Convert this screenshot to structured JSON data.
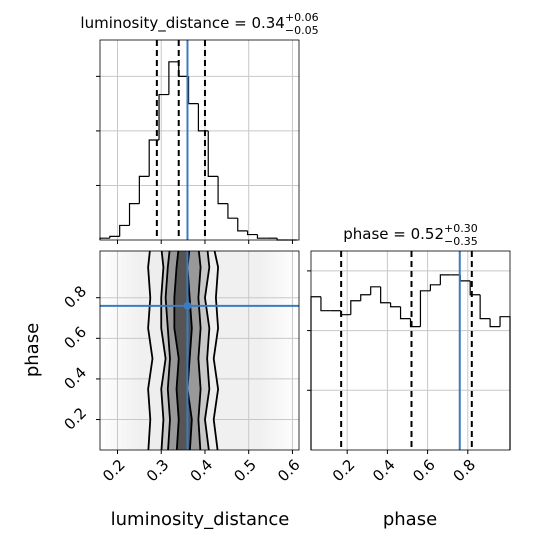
{
  "chart_data": {
    "type": "corner",
    "params": [
      "luminosity_distance",
      "phase"
    ],
    "titles": [
      {
        "main": "luminosity_distance = 0.34",
        "upper": "+0.06",
        "lower": "−0.05"
      },
      {
        "main": "phase = 0.52",
        "upper": "+0.30",
        "lower": "−0.35"
      }
    ],
    "xlim": [
      0.16,
      0.615
    ],
    "xticks": [
      0.2,
      0.3,
      0.4,
      0.5,
      0.6
    ],
    "phase_lim": [
      0.02,
      1.01
    ],
    "phase_ticks": [
      0.2,
      0.4,
      0.6,
      0.8
    ],
    "hist_ylim": [
      [
        0,
        1.1
      ],
      [
        0,
        1
      ]
    ],
    "hist_yticks": [
      [
        0.3,
        0.6,
        0.9
      ],
      [
        0.3,
        0.6,
        0.9
      ]
    ],
    "truth": [
      0.36,
      0.76
    ],
    "truth_color": "#3b7bbf",
    "quantiles": [
      [
        0.29,
        0.34,
        0.4
      ],
      [
        0.17,
        0.52,
        0.82
      ]
    ],
    "hists": [
      {
        "bins": [
          0.16,
          0.1825,
          0.205,
          0.2275,
          0.25,
          0.2725,
          0.295,
          0.3175,
          0.34,
          0.3625,
          0.385,
          0.4075,
          0.43,
          0.4525,
          0.475,
          0.4975,
          0.52,
          0.5425,
          0.565,
          0.5875,
          0.61
        ],
        "counts": [
          0.01,
          0.02,
          0.08,
          0.2,
          0.35,
          0.55,
          0.8,
          0.98,
          0.9,
          0.75,
          0.6,
          0.35,
          0.2,
          0.12,
          0.05,
          0.03,
          0.01,
          0.01,
          0,
          0
        ]
      },
      {
        "bins": [
          0.02,
          0.0695,
          0.119,
          0.1685,
          0.218,
          0.2675,
          0.317,
          0.3665,
          0.416,
          0.4655,
          0.515,
          0.5645,
          0.614,
          0.6635,
          0.713,
          0.7625,
          0.812,
          0.8615,
          0.911,
          0.9605,
          1.01
        ],
        "counts": [
          0.77,
          0.7,
          0.7,
          0.68,
          0.75,
          0.78,
          0.82,
          0.74,
          0.72,
          0.66,
          0.62,
          0.8,
          0.83,
          0.88,
          0.88,
          0.85,
          0.78,
          0.66,
          0.62,
          0.67
        ]
      }
    ],
    "contour_phase": [
      0.03,
      0.2,
      0.35,
      0.5,
      0.65,
      0.8,
      0.95,
      1.05
    ],
    "contours": [
      {
        "color": "#eeeeee",
        "left": [
          0.27,
          0.275,
          0.27,
          0.28,
          0.27,
          0.275,
          0.27,
          0.275
        ],
        "right": [
          0.43,
          0.42,
          0.43,
          0.42,
          0.43,
          0.425,
          0.43,
          0.42
        ]
      },
      {
        "color": "#c8c8c8",
        "left": [
          0.3,
          0.305,
          0.3,
          0.31,
          0.3,
          0.3,
          0.305,
          0.3
        ],
        "right": [
          0.41,
          0.4,
          0.41,
          0.405,
          0.41,
          0.4,
          0.41,
          0.405
        ]
      },
      {
        "color": "#999999",
        "left": [
          0.315,
          0.32,
          0.315,
          0.32,
          0.315,
          0.31,
          0.315,
          0.32
        ],
        "right": [
          0.39,
          0.385,
          0.39,
          0.385,
          0.39,
          0.385,
          0.39,
          0.385
        ]
      },
      {
        "color": "#555555",
        "left": [
          0.335,
          0.34,
          0.335,
          0.34,
          0.33,
          0.33,
          0.335,
          0.34
        ],
        "right": [
          0.365,
          0.37,
          0.36,
          0.365,
          0.37,
          0.365,
          0.36,
          0.365
        ]
      }
    ]
  }
}
